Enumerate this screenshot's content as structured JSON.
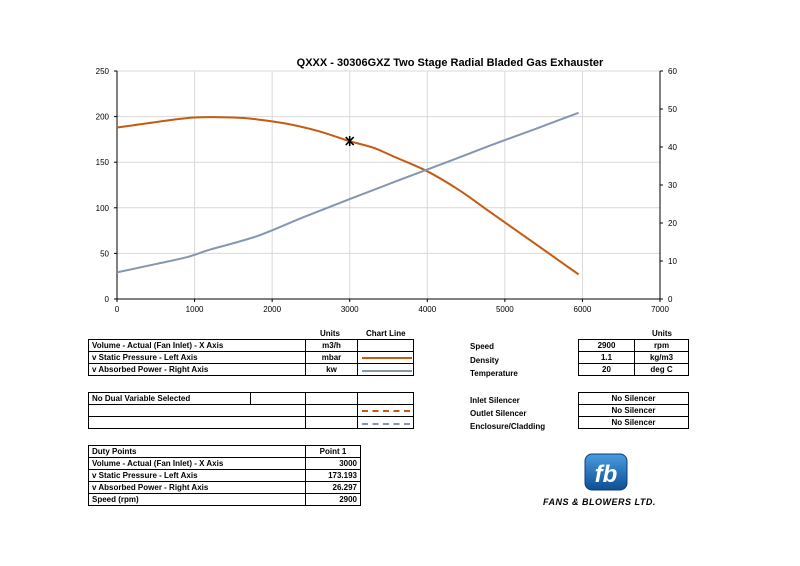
{
  "colors": {
    "pressure": "#c55a11",
    "power": "#8496b0",
    "grid": "#d9d9d9",
    "logo": "#1f6fb5"
  },
  "chart_data": {
    "type": "line",
    "title": "QXXX - 30306GXZ Two Stage Radial Bladed Gas Exhauster",
    "xlim": [
      0,
      7000
    ],
    "ylim_left": [
      0,
      250
    ],
    "ylim_right": [
      0,
      60
    ],
    "x_ticks": [
      "0",
      "1000",
      "2000",
      "3000",
      "4000",
      "5000",
      "6000",
      "7000"
    ],
    "y_left_ticks": [
      "0",
      "50",
      "100",
      "150",
      "200",
      "250"
    ],
    "y_right_ticks": [
      "0",
      "10",
      "20",
      "30",
      "40",
      "50",
      "60"
    ],
    "series": [
      {
        "name": "v Static Pressure - Left Axis",
        "axis": "left",
        "color": "#c55a11",
        "x": [
          0,
          500,
          1000,
          1500,
          1800,
          2200,
          2600,
          3000,
          3300,
          3600,
          4000,
          4400,
          4800,
          5200,
          5600,
          5950
        ],
        "y": [
          188,
          194,
          199,
          199,
          197,
          192,
          184,
          173,
          166,
          155,
          140,
          120,
          96,
          72,
          48,
          27
        ]
      },
      {
        "name": "v Absorbed Power - Right Axis",
        "axis": "right",
        "color": "#8496b0",
        "x": [
          0,
          500,
          900,
          1200,
          1800,
          2400,
          3000,
          3600,
          4200,
          4800,
          5400,
          5950
        ],
        "y": [
          7,
          9.2,
          11,
          13,
          16.5,
          21.5,
          26.3,
          31,
          35.6,
          40.3,
          44.8,
          49
        ]
      }
    ],
    "duty_point": {
      "x": 3000,
      "y": 173.193,
      "marker": "X"
    }
  },
  "series_table": {
    "units_header": "Units",
    "chart_line_header": "Chart Line",
    "rows": [
      {
        "label": "Volume - Actual (Fan Inlet) - X Axis",
        "units": "m3/h"
      },
      {
        "label": "v Static Pressure - Left Axis",
        "units": "mbar"
      },
      {
        "label": "v Absorbed Power - Right Axis",
        "units": "kw"
      }
    ]
  },
  "dual_table": {
    "label": "No Dual Variable Selected"
  },
  "duty_table": {
    "header": "Duty Points",
    "point_header": "Point 1",
    "rows": [
      {
        "label": "Volume - Actual (Fan Inlet) - X Axis",
        "value": "3000"
      },
      {
        "label": "v Static Pressure - Left Axis",
        "value": "173.193"
      },
      {
        "label": "v Absorbed Power - Right Axis",
        "value": "26.297"
      },
      {
        "label": "Speed (rpm)",
        "value": "2900"
      }
    ]
  },
  "conditions": {
    "units_header": "Units",
    "rows": [
      {
        "label": "Speed",
        "value": "2900",
        "unit": "rpm"
      },
      {
        "label": "Density",
        "value": "1.1",
        "unit": "kg/m3"
      },
      {
        "label": "Temperature",
        "value": "20",
        "unit": "deg C"
      }
    ]
  },
  "silencers": [
    {
      "label": "Inlet Silencer",
      "value": "No Silencer"
    },
    {
      "label": "Outlet Silencer",
      "value": "No Silencer"
    },
    {
      "label": "Enclosure/Cladding",
      "value": "No Silencer"
    }
  ],
  "logo": {
    "mark": "fb",
    "company": "FANS & BLOWERS LTD."
  }
}
